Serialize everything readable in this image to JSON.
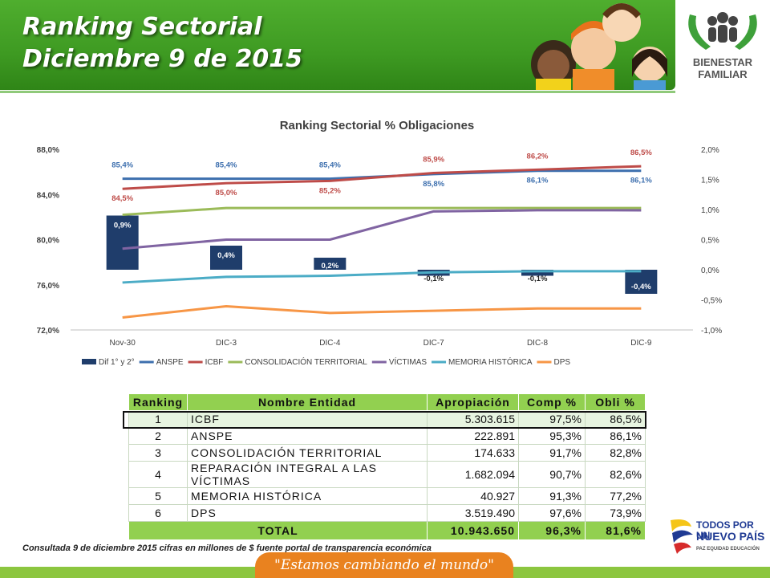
{
  "header": {
    "title_line1": "Ranking Sectorial",
    "title_line2": "Diciembre  9 de 2015"
  },
  "logos": {
    "top_right_line1": "BIENESTAR",
    "top_right_line2": "FAMILIAR",
    "bottom_right_line1": "TODOS POR UN",
    "bottom_right_line2": "NUEVO PAÍS",
    "bottom_right_line3": "PAZ  EQUIDAD  EDUCACIÓN"
  },
  "chart_data": {
    "type": "line",
    "title": "Ranking Sectorial % Obligaciones",
    "categories": [
      "Nov-30",
      "DIC-3",
      "DIC-4",
      "DIC-7",
      "DIC-8",
      "DIC-9"
    ],
    "y_left": {
      "min": 72,
      "max": 88,
      "ticks": [
        "72,0%",
        "76,0%",
        "80,0%",
        "84,0%",
        "88,0%"
      ]
    },
    "y_right": {
      "min": -1,
      "max": 2,
      "ticks": [
        "-1,0%",
        "-0,5%",
        "0,0%",
        "0,5%",
        "1,0%",
        "1,5%",
        "2,0%"
      ]
    },
    "bar_series": {
      "name": "Dif 1° y 2°",
      "values": [
        0.9,
        0.4,
        0.2,
        -0.1,
        -0.1,
        -0.4
      ],
      "labels": [
        "0,9%",
        "0,4%",
        "0,2%",
        "-0,1%",
        "-0,1%",
        "-0,4%"
      ],
      "color": "#1f3d6b",
      "axis": "right"
    },
    "series": [
      {
        "name": "ANSPE",
        "color": "#3d6fae",
        "values": [
          85.4,
          85.4,
          85.4,
          85.8,
          86.1,
          86.1
        ],
        "labels": [
          "85,4%",
          "85,4%",
          "85,4%",
          "85,8%",
          "86,1%",
          "86,1%"
        ]
      },
      {
        "name": "ICBF",
        "color": "#be4b48",
        "values": [
          84.5,
          85.0,
          85.2,
          85.9,
          86.2,
          86.5
        ],
        "labels": [
          "84,5%",
          "85,0%",
          "85,2%",
          "85,9%",
          "86,2%",
          "86,5%"
        ]
      },
      {
        "name": "CONSOLIDACIÓN TERRITORIAL",
        "color": "#9bbb59",
        "values": [
          82.2,
          82.8,
          82.8,
          82.8,
          82.8,
          82.8
        ]
      },
      {
        "name": "VÍCTIMAS",
        "color": "#8064a2",
        "values": [
          79.2,
          80.0,
          80.0,
          82.5,
          82.6,
          82.6
        ]
      },
      {
        "name": "MEMORIA HISTÓRICA",
        "color": "#4bacc6",
        "values": [
          76.2,
          76.7,
          76.8,
          77.1,
          77.2,
          77.2
        ]
      },
      {
        "name": "DPS",
        "color": "#f79646",
        "values": [
          73.1,
          74.1,
          73.5,
          73.7,
          73.9,
          73.9
        ]
      }
    ],
    "legend_position": "bottom",
    "grid": false
  },
  "table": {
    "headers": [
      "Ranking",
      "Nombre Entidad",
      "Apropiación",
      "Comp %",
      "Obli %"
    ],
    "rows": [
      [
        "1",
        "ICBF",
        "5.303.615",
        "97,5%",
        "86,5%"
      ],
      [
        "2",
        "ANSPE",
        "222.891",
        "95,3%",
        "86,1%"
      ],
      [
        "3",
        "CONSOLIDACIÓN TERRITORIAL",
        "174.633",
        "91,7%",
        "82,8%"
      ],
      [
        "4",
        "REPARACIÓN INTEGRAL A LAS VÍCTIMAS",
        "1.682.094",
        "90,7%",
        "82,6%"
      ],
      [
        "5",
        "MEMORIA HISTÓRICA",
        "40.927",
        "91,3%",
        "77,2%"
      ],
      [
        "6",
        "DPS",
        "3.519.490",
        "97,6%",
        "73,9%"
      ]
    ],
    "total": [
      "TOTAL",
      "10.943.650",
      "96,3%",
      "81,6%"
    ]
  },
  "footer": {
    "note": "Consultada 9 de diciembre 2015 cifras en millones de $ fuente portal de transparencia económica",
    "slogan": "\"Estamos cambiando el mundo\""
  }
}
